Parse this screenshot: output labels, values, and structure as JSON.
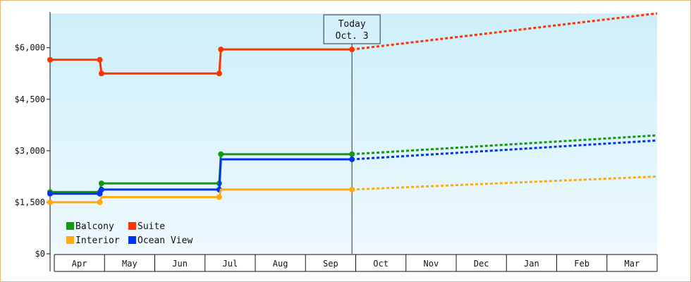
{
  "chart_data": {
    "type": "line",
    "title": "",
    "xlabel": "",
    "ylabel": "",
    "x_axis": {
      "month_labels": [
        "Apr",
        "May",
        "Jun",
        "Jul",
        "Aug",
        "Sep",
        "Oct",
        "Nov",
        "Dec",
        "Jan",
        "Feb",
        "Mar"
      ],
      "range_days": [
        0,
        366
      ]
    },
    "y_axis": {
      "ticks": [
        0,
        1500,
        3000,
        4500,
        6000
      ],
      "tick_labels": [
        "$0",
        "$1,500",
        "$3,000",
        "$4,500",
        "$6,000"
      ],
      "ylim": [
        0,
        7000
      ]
    },
    "marker": {
      "line1": "Today",
      "line2": "Oct. 3",
      "x_day": 182
    },
    "legend": {
      "position": "bottom-left"
    },
    "colors": {
      "plot_gradient_top": "#cdeffa",
      "plot_gradient_bottom": "#eef9fd",
      "frame_border": "#e8b87a"
    },
    "series": [
      {
        "name": "Suite",
        "color": "#ff3300",
        "points": [
          [
            0,
            5650
          ],
          [
            30,
            5650
          ],
          [
            31,
            5250
          ],
          [
            102,
            5250
          ],
          [
            103,
            5950
          ],
          [
            182,
            5950
          ]
        ],
        "markers": [
          [
            0,
            5650
          ],
          [
            30,
            5650
          ],
          [
            31,
            5250
          ],
          [
            102,
            5250
          ],
          [
            103,
            5950
          ],
          [
            182,
            5950
          ]
        ],
        "projection": [
          [
            182,
            5950
          ],
          [
            366,
            7000
          ]
        ]
      },
      {
        "name": "Balcony",
        "color": "#119911",
        "points": [
          [
            0,
            1800
          ],
          [
            30,
            1800
          ],
          [
            31,
            2050
          ],
          [
            102,
            2050
          ],
          [
            103,
            2900
          ],
          [
            182,
            2900
          ]
        ],
        "markers": [
          [
            0,
            1800
          ],
          [
            30,
            1800
          ],
          [
            31,
            2050
          ],
          [
            102,
            2050
          ],
          [
            103,
            2900
          ],
          [
            182,
            2900
          ]
        ],
        "projection": [
          [
            182,
            2900
          ],
          [
            366,
            3450
          ]
        ]
      },
      {
        "name": "Ocean View",
        "color": "#0033ee",
        "points": [
          [
            0,
            1750
          ],
          [
            30,
            1750
          ],
          [
            31,
            1870
          ],
          [
            102,
            1870
          ],
          [
            103,
            2750
          ],
          [
            182,
            2750
          ]
        ],
        "markers": [
          [
            0,
            1750
          ],
          [
            30,
            1750
          ],
          [
            31,
            1870
          ],
          [
            102,
            1870
          ],
          [
            182,
            2750
          ]
        ],
        "projection": [
          [
            182,
            2750
          ],
          [
            366,
            3300
          ]
        ]
      },
      {
        "name": "Interior",
        "color": "#ffaa11",
        "points": [
          [
            0,
            1500
          ],
          [
            30,
            1500
          ],
          [
            31,
            1650
          ],
          [
            102,
            1650
          ],
          [
            103,
            1870
          ],
          [
            182,
            1870
          ]
        ],
        "markers": [
          [
            0,
            1500
          ],
          [
            30,
            1500
          ],
          [
            102,
            1650
          ],
          [
            182,
            1870
          ]
        ],
        "projection": [
          [
            182,
            1870
          ],
          [
            366,
            2250
          ]
        ]
      }
    ],
    "legend_rows": [
      [
        {
          "name": "Balcony",
          "color": "#119911"
        },
        {
          "name": "Suite",
          "color": "#ff3300"
        }
      ],
      [
        {
          "name": "Interior",
          "color": "#ffaa11"
        },
        {
          "name": "Ocean View",
          "color": "#0033ee"
        }
      ]
    ]
  }
}
